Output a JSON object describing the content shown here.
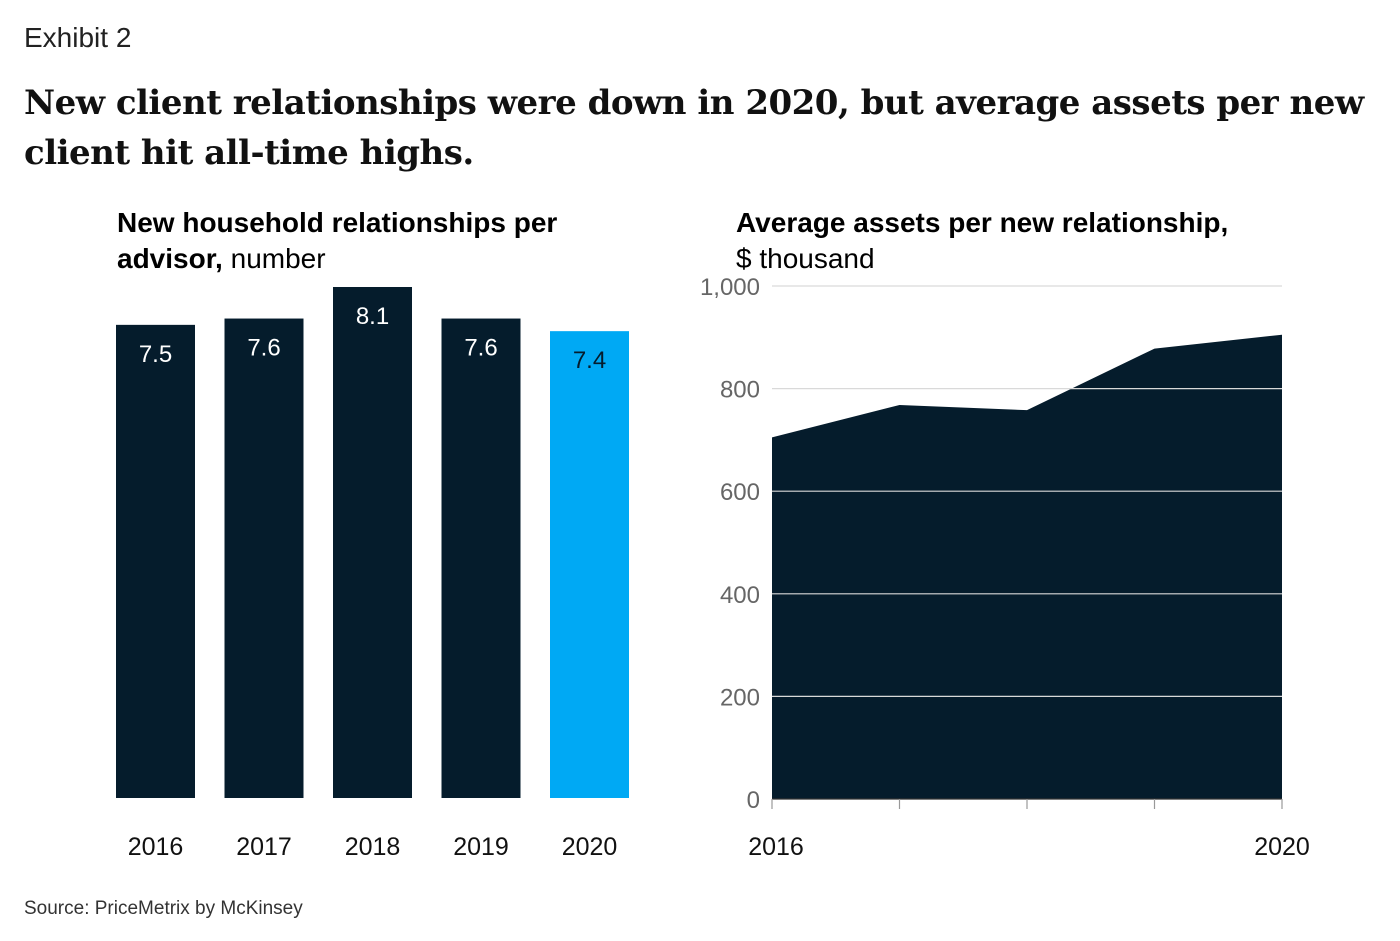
{
  "exhibit_label": "Exhibit 2",
  "headline": "New client relationships were down in 2020, but average assets per new client hit all-time highs.",
  "source": "Source: PriceMetrix by McKinsey",
  "colors": {
    "dark": "#051c2c",
    "highlight": "#00a9f4",
    "grid": "#d9d9d9"
  },
  "chart_data": [
    {
      "type": "bar",
      "title_bold": "New household relationships per advisor,",
      "title_unit": " number",
      "categories": [
        "2016",
        "2017",
        "2018",
        "2019",
        "2020"
      ],
      "values": [
        7.5,
        7.6,
        8.1,
        7.6,
        7.4
      ],
      "value_labels": [
        "7.5",
        "7.6",
        "8.1",
        "7.6",
        "7.4"
      ],
      "highlight_index": 4,
      "ylim": [
        0,
        8.1
      ]
    },
    {
      "type": "area",
      "title_bold": "Average assets per new relationship,",
      "title_unit": "$ thousand",
      "x": [
        "2016",
        "2017",
        "2018",
        "2019",
        "2020"
      ],
      "values": [
        705,
        768,
        758,
        878,
        905
      ],
      "x_tick_labels": [
        "2016",
        "",
        "",
        "",
        "2020"
      ],
      "y_ticks": [
        0,
        200,
        400,
        600,
        800,
        1000
      ],
      "y_tick_labels": [
        "0",
        "200",
        "400",
        "600",
        "800",
        "1,000"
      ],
      "ylim": [
        0,
        1000
      ],
      "grid": true
    }
  ]
}
